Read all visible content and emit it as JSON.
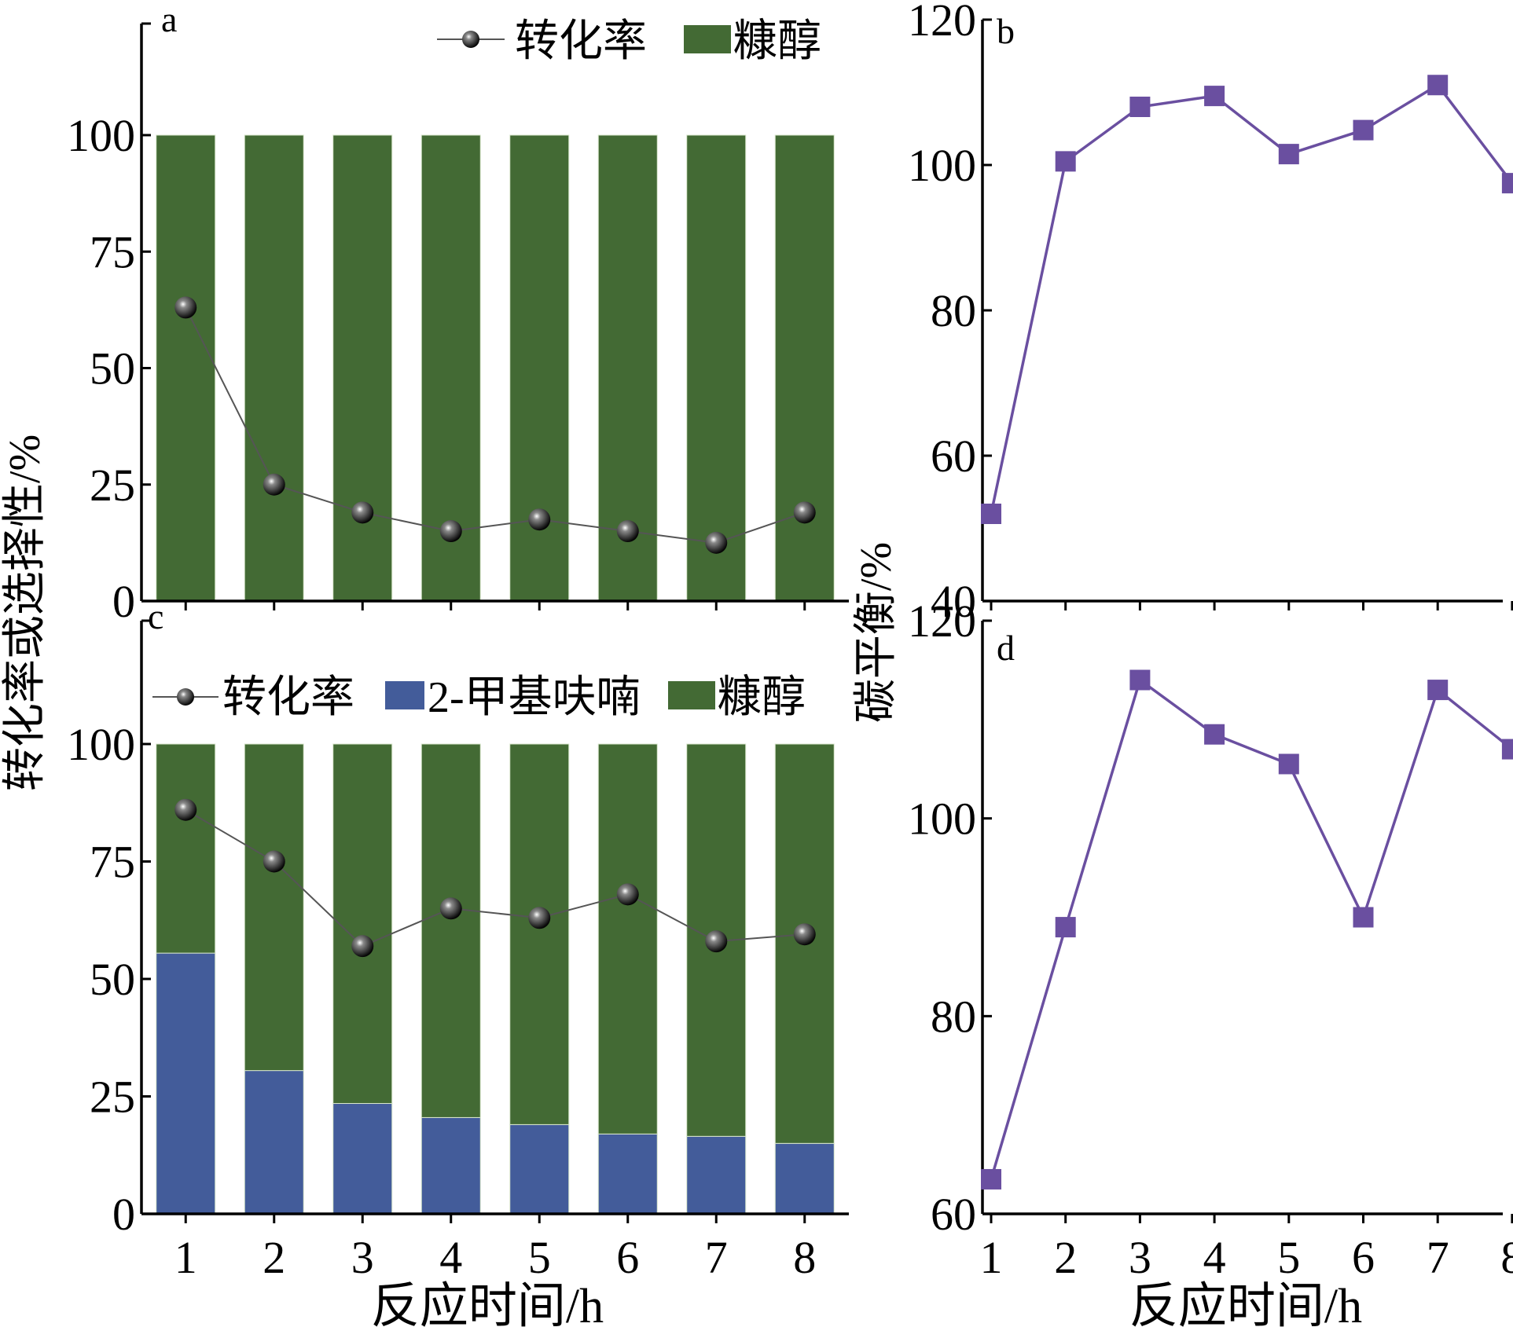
{
  "chart_data": [
    {
      "panel": "a",
      "type": "bar",
      "stacked": true,
      "panel_label": "a",
      "categories": [
        "1",
        "2",
        "3",
        "4",
        "5",
        "6",
        "7",
        "8"
      ],
      "series": [
        {
          "name": "糠醇",
          "kind": "bar",
          "color": "#436a34",
          "values": [
            100,
            100,
            100,
            100,
            100,
            100,
            100,
            100
          ]
        },
        {
          "name": "转化率",
          "kind": "line",
          "color": "#555555",
          "values": [
            63,
            25,
            19,
            15,
            17.5,
            15,
            12.5,
            19
          ]
        }
      ],
      "yticks": [
        "0",
        "25",
        "50",
        "75",
        "100"
      ],
      "ylim": [
        0,
        120
      ],
      "legend": "top-right"
    },
    {
      "panel": "b",
      "type": "line",
      "panel_label": "b",
      "x": [
        1,
        2,
        3,
        4,
        5,
        6,
        7,
        8
      ],
      "series": [
        {
          "name": "",
          "color": "#6a4fa0",
          "marker": "square",
          "values": [
            52,
            100.5,
            108,
            109.5,
            101.5,
            104.8,
            111,
            97.5
          ]
        }
      ],
      "yticks": [
        "40",
        "60",
        "80",
        "100",
        "120"
      ],
      "ylim": [
        40,
        120
      ],
      "legend": "none"
    },
    {
      "panel": "c",
      "type": "bar",
      "stacked": true,
      "panel_label": "c",
      "categories": [
        "1",
        "2",
        "3",
        "4",
        "5",
        "6",
        "7",
        "8"
      ],
      "series": [
        {
          "name": "2-甲基呋喃",
          "kind": "bar",
          "color": "#435c9a",
          "values": [
            55.5,
            30.5,
            23.5,
            20.5,
            19,
            17,
            16.5,
            15
          ]
        },
        {
          "name": "糠醇",
          "kind": "bar",
          "color": "#436a34",
          "values": [
            44.5,
            69.5,
            76.5,
            79.5,
            81,
            83,
            83.5,
            85
          ]
        },
        {
          "name": "转化率",
          "kind": "line",
          "color": "#555555",
          "values": [
            86,
            75,
            57,
            65,
            63,
            68,
            58,
            59.5
          ]
        }
      ],
      "yticks": [
        "0",
        "25",
        "50",
        "75",
        "100"
      ],
      "ylim": [
        0,
        120
      ],
      "legend": "top-left"
    },
    {
      "panel": "d",
      "type": "line",
      "panel_label": "d",
      "x": [
        1,
        2,
        3,
        4,
        5,
        6,
        7,
        8
      ],
      "series": [
        {
          "name": "",
          "color": "#6a4fa0",
          "marker": "square",
          "values": [
            63.5,
            89,
            114,
            108.5,
            105.5,
            90,
            113,
            107
          ]
        }
      ],
      "yticks": [
        "60",
        "80",
        "100",
        "120"
      ],
      "ylim": [
        60,
        120
      ],
      "legend": "none"
    }
  ],
  "axes": {
    "xticks": [
      "1",
      "2",
      "3",
      "4",
      "5",
      "6",
      "7",
      "8"
    ],
    "left_ylabel": "转化率或选择性/%",
    "right_ylabel": "碳平衡/%",
    "left_xlabel": "反应时间/h",
    "right_xlabel": "反应时间/h"
  },
  "colors": {
    "furfuryl_alcohol": "#436a34",
    "methylfuran": "#435c9a",
    "carbon_balance": "#6a4fa0",
    "conversion_line": "#555555"
  }
}
